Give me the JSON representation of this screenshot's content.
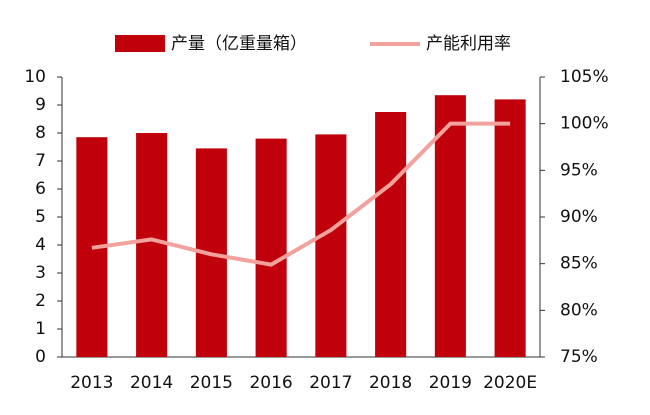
{
  "chart_data": {
    "type": "bar_line",
    "categories": [
      "2013",
      "2014",
      "2015",
      "2016",
      "2017",
      "2018",
      "2019",
      "2020E"
    ],
    "series": [
      {
        "name": "产量（亿重量箱）",
        "type": "bar",
        "color": "#c0000b",
        "axis": "y",
        "values": [
          7.85,
          8.0,
          7.45,
          7.8,
          7.95,
          8.75,
          9.35,
          9.2
        ]
      },
      {
        "name": "产能利用率",
        "type": "line",
        "color": "#f2a19c",
        "axis": "y2",
        "values": [
          86.7,
          87.6,
          86.0,
          84.9,
          88.6,
          93.5,
          100,
          100
        ]
      }
    ],
    "ylim": [
      0,
      10
    ],
    "yticks": [
      0,
      1,
      2,
      3,
      4,
      5,
      6,
      7,
      8,
      9,
      10
    ],
    "y2lim": [
      75,
      105
    ],
    "y2ticks": [
      {
        "value": 75,
        "label": "75%"
      },
      {
        "value": 80,
        "label": "80%"
      },
      {
        "value": 85,
        "label": "85%"
      },
      {
        "value": 90,
        "label": "90%"
      },
      {
        "value": 95,
        "label": "95%"
      },
      {
        "value": 100,
        "label": "100%"
      },
      {
        "value": 105,
        "label": "105%"
      }
    ],
    "legend": "top"
  }
}
